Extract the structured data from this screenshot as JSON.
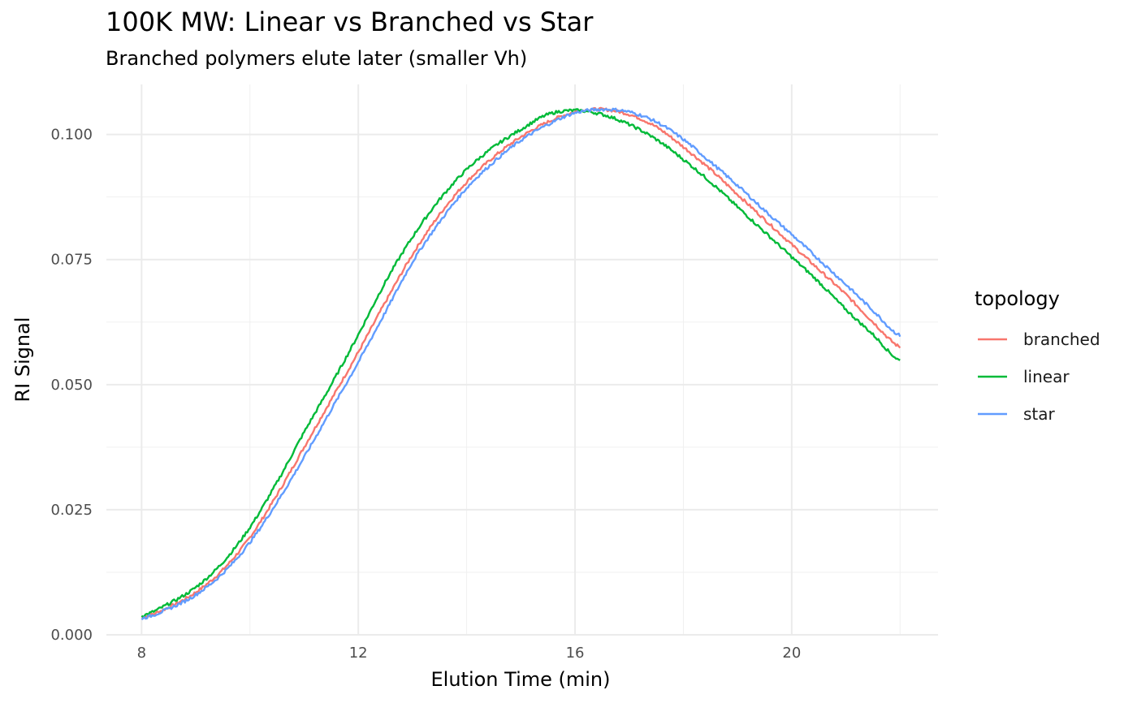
{
  "chart_data": {
    "type": "line",
    "title": "100K MW: Linear vs Branched vs Star",
    "subtitle": "Branched polymers elute later (smaller Vh)",
    "xlabel": "Elution Time (min)",
    "ylabel": "RI Signal",
    "xlim": [
      7.35,
      22.7
    ],
    "ylim": [
      0,
      0.11
    ],
    "x_ticks": [
      8,
      12,
      16,
      20
    ],
    "x_tick_labels": [
      "8",
      "12",
      "16",
      "20"
    ],
    "y_ticks": [
      0,
      0.025,
      0.05,
      0.075,
      0.1
    ],
    "y_tick_labels": [
      "0.000",
      "0.025",
      "0.050",
      "0.075",
      "0.100"
    ],
    "grid": true,
    "legend": {
      "title": "topology",
      "position": "right"
    },
    "series": [
      {
        "name": "branched",
        "color": "#F8766D",
        "x": [
          8,
          8.5,
          9,
          9.5,
          10,
          10.5,
          11,
          11.5,
          12,
          12.5,
          13,
          13.5,
          14,
          14.5,
          15,
          15.5,
          16,
          16.5,
          17,
          17.5,
          18,
          18.5,
          19,
          19.5,
          20,
          20.5,
          21,
          21.5,
          22
        ],
        "y": [
          0.0035,
          0.0055,
          0.0085,
          0.013,
          0.0195,
          0.028,
          0.0375,
          0.047,
          0.0565,
          0.0665,
          0.076,
          0.084,
          0.0905,
          0.0955,
          0.0995,
          0.1025,
          0.1045,
          0.105,
          0.104,
          0.1015,
          0.0975,
          0.093,
          0.088,
          0.083,
          0.078,
          0.073,
          0.068,
          0.0625,
          0.0575
        ]
      },
      {
        "name": "linear",
        "color": "#00BA38",
        "x": [
          8,
          8.5,
          9,
          9.5,
          10,
          10.5,
          11,
          11.5,
          12,
          12.5,
          13,
          13.5,
          14,
          14.5,
          15,
          15.5,
          16,
          16.5,
          17,
          17.5,
          18,
          18.5,
          19,
          19.5,
          20,
          20.5,
          21,
          21.5,
          22
        ],
        "y": [
          0.0038,
          0.0062,
          0.0095,
          0.0145,
          0.0215,
          0.0305,
          0.0405,
          0.05,
          0.06,
          0.0705,
          0.0795,
          0.087,
          0.093,
          0.0975,
          0.101,
          0.104,
          0.1048,
          0.104,
          0.102,
          0.099,
          0.095,
          0.0905,
          0.0855,
          0.0805,
          0.0755,
          0.0705,
          0.065,
          0.06,
          0.0548
        ]
      },
      {
        "name": "star",
        "color": "#619CFF",
        "x": [
          8,
          8.5,
          9,
          9.5,
          10,
          10.5,
          11,
          11.5,
          12,
          12.5,
          13,
          13.5,
          14,
          14.5,
          15,
          15.5,
          16,
          16.5,
          17,
          17.5,
          18,
          18.5,
          19,
          19.5,
          20,
          20.5,
          21,
          21.5,
          22
        ],
        "y": [
          0.0033,
          0.0052,
          0.008,
          0.0123,
          0.0185,
          0.0265,
          0.0355,
          0.045,
          0.0545,
          0.0645,
          0.0745,
          0.0825,
          0.0893,
          0.0945,
          0.0988,
          0.102,
          0.1043,
          0.105,
          0.1045,
          0.1025,
          0.099,
          0.0945,
          0.0898,
          0.0848,
          0.08,
          0.075,
          0.07,
          0.0648,
          0.0598
        ]
      }
    ]
  }
}
